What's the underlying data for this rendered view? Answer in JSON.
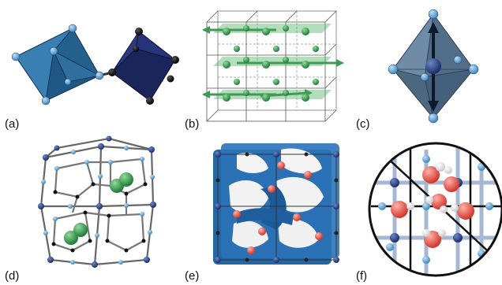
{
  "panels": [
    {
      "label": "(a)"
    },
    {
      "label": "(b)"
    },
    {
      "label": "(c)"
    },
    {
      "label": "(d)"
    },
    {
      "label": "(e)"
    },
    {
      "label": "(f)"
    }
  ],
  "colors": {
    "blue_octahedron": "#2f6e9e",
    "navy_octahedron": "#1f2c66",
    "light_atom": "#8cc2e6",
    "dark_atom": "#0b0b0b",
    "green_atom": "#2f9a46",
    "green_arrow": "#57b668",
    "grey_octahedron": "#5c7893",
    "surface_blue": "#2566a6",
    "red_atom": "#e8544b",
    "hydrogen": "#eeeeee"
  }
}
